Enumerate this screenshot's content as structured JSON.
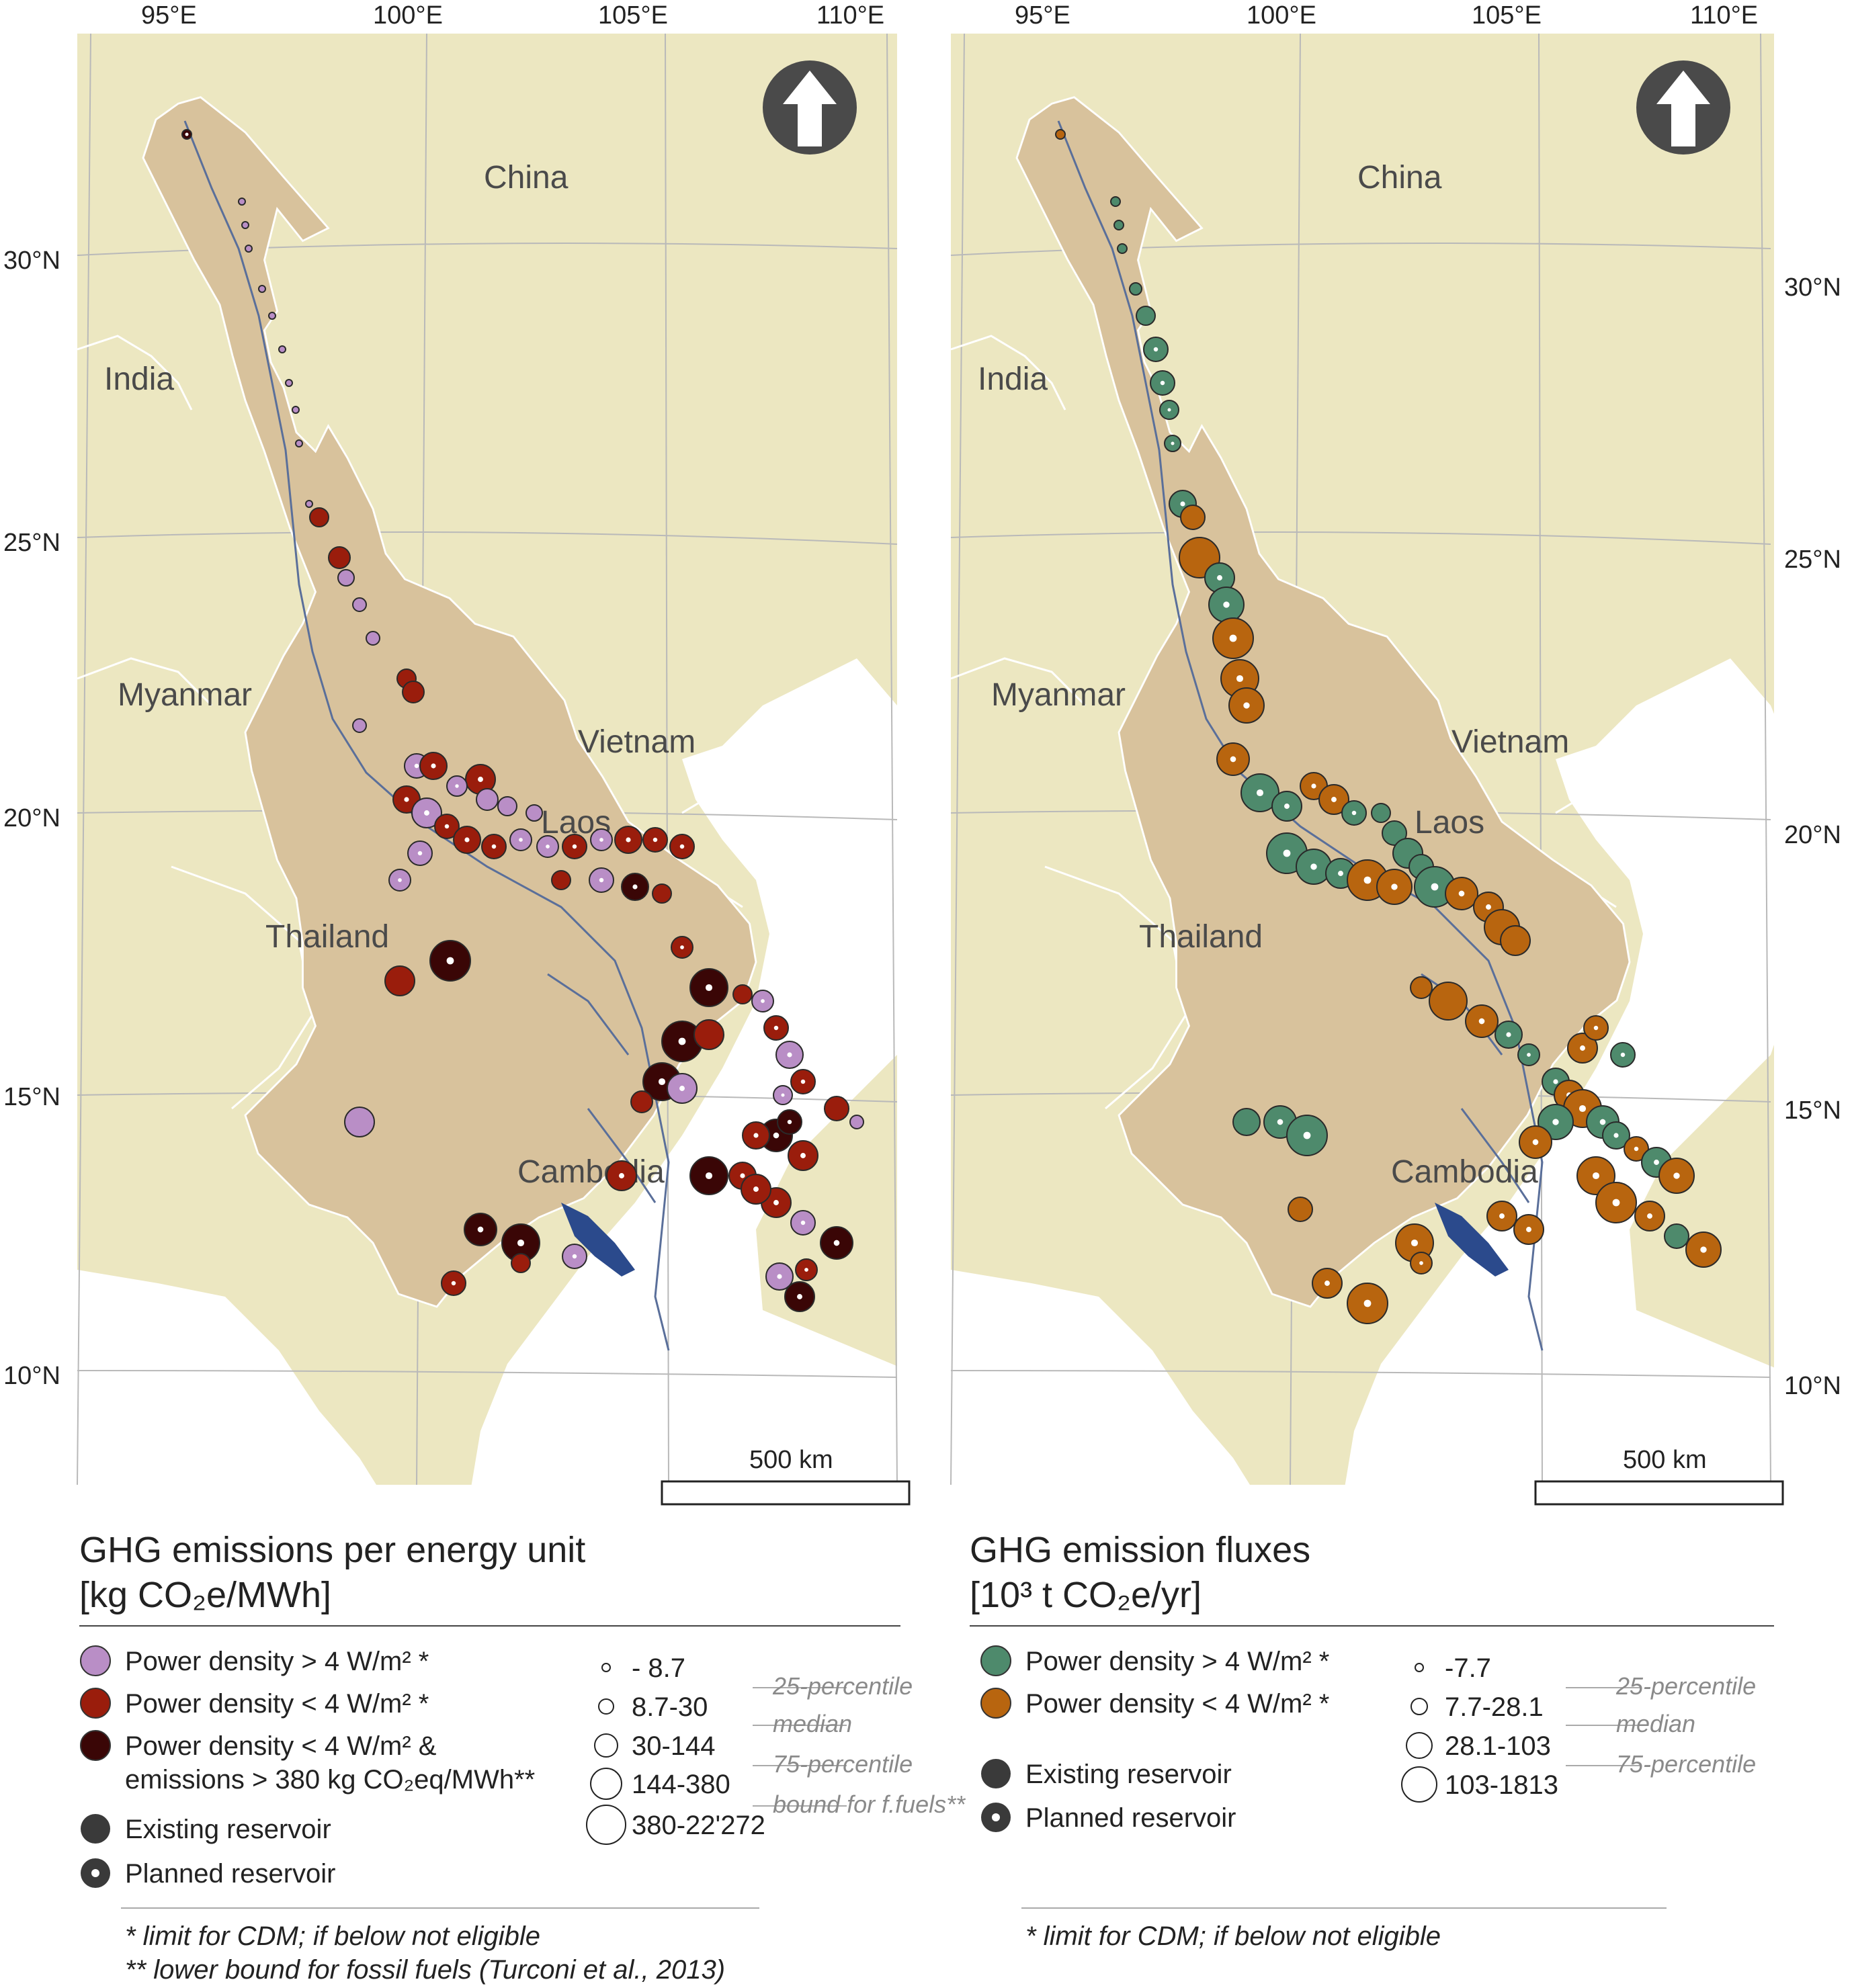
{
  "left_map": {
    "lon_labels": [
      "95°E",
      "100°E",
      "105°E",
      "110°E"
    ],
    "lat_labels": [
      "30°N",
      "25°N",
      "20°N",
      "15°N",
      "10°N"
    ],
    "country_labels": [
      "China",
      "India",
      "Myanmar",
      "Vietnam",
      "Laos",
      "Thailand",
      "Cambodia"
    ],
    "scale_label": "500 km",
    "legend": {
      "title_line1": "GHG emissions per energy unit",
      "title_line2": "[kg CO₂e/MWh]",
      "categories": [
        {
          "label": "Power density > 4 W/m² *",
          "color": "#b98ec6"
        },
        {
          "label": "Power density < 4 W/m² *",
          "color": "#9a1d0c"
        },
        {
          "label": "Power density < 4 W/m² &",
          "label2": "emissions > 380 kg CO₂eq/MWh**",
          "color": "#3a0606"
        }
      ],
      "reservoir_types": [
        "Existing reservoir",
        "Planned reservoir"
      ],
      "size_classes": [
        "- 8.7",
        "8.7-30",
        "30-144",
        "144-380",
        "380-22'272"
      ],
      "percentile_notes": [
        "25-percentile",
        "median",
        "75-percentile",
        "bound for f.fuels**"
      ],
      "footnotes": [
        "* limit for CDM; if below not eligible",
        "** lower bound for fossil fuels (Turconi et al., 2013)"
      ]
    }
  },
  "right_map": {
    "lon_labels": [
      "95°E",
      "100°E",
      "105°E",
      "110°E"
    ],
    "lat_labels": [
      "30°N",
      "25°N",
      "20°N",
      "15°N",
      "10°N"
    ],
    "country_labels": [
      "China",
      "India",
      "Myanmar",
      "Vietnam",
      "Laos",
      "Thailand",
      "Cambodia"
    ],
    "scale_label": "500 km",
    "legend": {
      "title_line1": "GHG emission fluxes",
      "title_line2": "[10³ t CO₂e/yr]",
      "categories": [
        {
          "label": "Power density > 4 W/m² *",
          "color": "#4e8a6c"
        },
        {
          "label": "Power density < 4 W/m² *",
          "color": "#b8650f"
        }
      ],
      "reservoir_types": [
        "Existing reservoir",
        "Planned reservoir"
      ],
      "size_classes": [
        "-7.7",
        "7.7-28.1",
        "28.1-103",
        "103-1813"
      ],
      "percentile_notes": [
        "25-percentile",
        "median",
        "75-percentile"
      ],
      "footnotes": [
        "* limit for CDM; if below not eligible"
      ]
    }
  },
  "colors": {
    "background_land": "#ece7c1",
    "basin": "#d8c29c",
    "sea": "#ffffff",
    "river": "#5a6f9a",
    "lake": "#2b4a8c"
  }
}
